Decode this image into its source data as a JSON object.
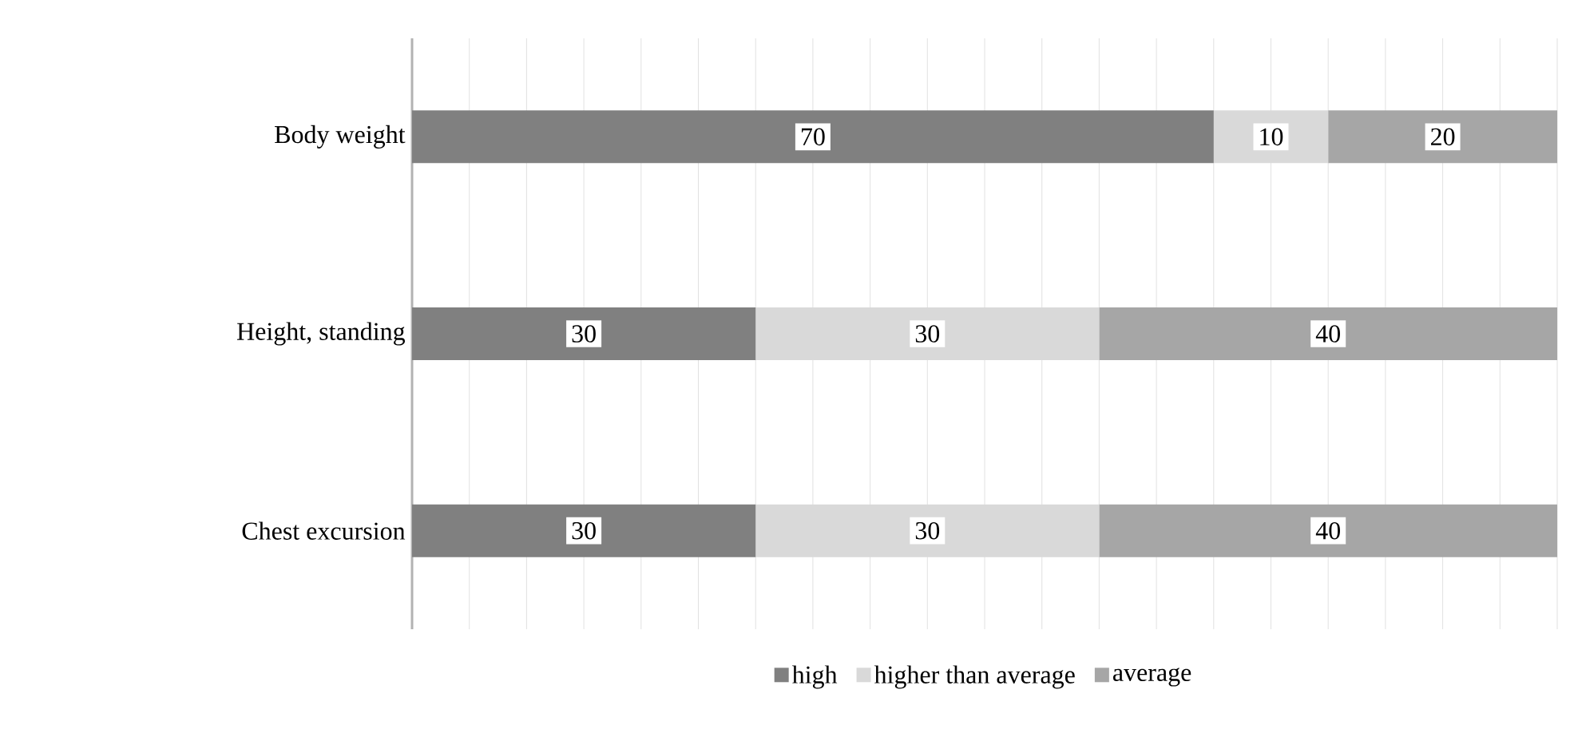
{
  "chart_data": {
    "type": "bar",
    "orientation": "horizontal",
    "stacked": true,
    "categories": [
      "Body weight",
      "Height, standing",
      "Chest excursion"
    ],
    "series": [
      {
        "name": "high",
        "color": "#808080",
        "values": [
          70,
          30,
          30
        ]
      },
      {
        "name": "higher than average",
        "color": "#d9d9d9",
        "values": [
          10,
          30,
          30
        ]
      },
      {
        "name": "average",
        "color": "#a6a6a6",
        "values": [
          20,
          40,
          40
        ]
      }
    ],
    "tick_labels": "y",
    "grid": "x",
    "data_labels": true,
    "legend": "bottom"
  }
}
